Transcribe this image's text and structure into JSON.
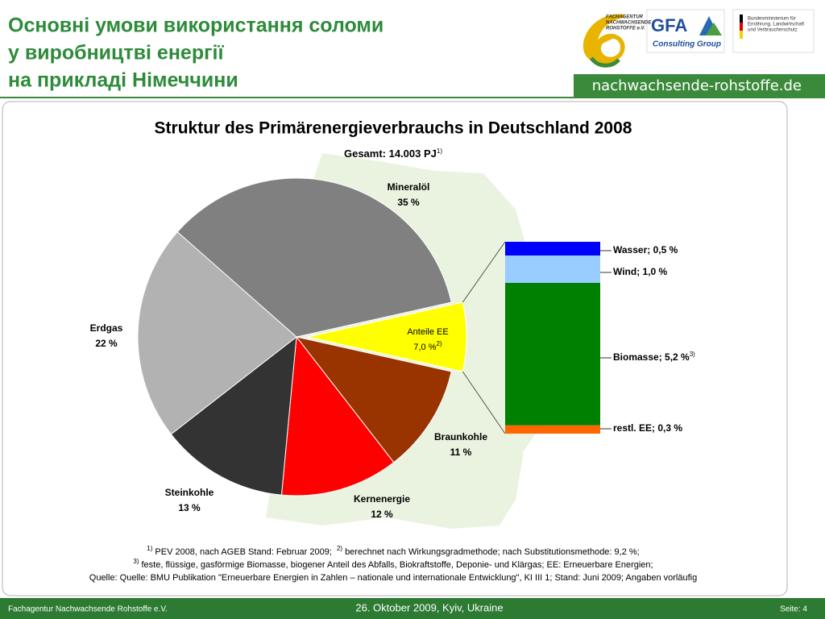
{
  "header": {
    "title": [
      "Основні умови використання соломи",
      "у виробництві енергії",
      "на прикладі Німеччини"
    ],
    "site": "nachwachsende-rohstoffe.de",
    "logos": {
      "fnr": [
        "FACHAGENTUR",
        "NACHWACHSENDE",
        "ROHSTOFFE e.V."
      ],
      "gfa": [
        "GFA",
        "Consulting Group"
      ],
      "bmelv": [
        "Bundesministerium für",
        "Ernährung, Landwirtschaft",
        "und Verbraucherschutz"
      ]
    }
  },
  "chart_data": [
    {
      "type": "pie",
      "title": "Struktur des Primärenergieverbrauchs in Deutschland 2008",
      "subtitle": "Gesamt: 14.003 PJ",
      "subtitle_note": "1)",
      "categories": [
        "Anteile EE",
        "Braunkohle",
        "Kernenergie",
        "Steinkohle",
        "Erdgas",
        "Mineralöl"
      ],
      "values": [
        7.0,
        11,
        12,
        13,
        22,
        35
      ],
      "value_labels": [
        "7,0 %",
        "11 %",
        "12 %",
        "13 %",
        "22 %",
        "35 %"
      ],
      "label_notes": [
        "2)",
        null,
        null,
        null,
        null,
        null
      ],
      "colors": [
        "#ffff00",
        "#993300",
        "#ff0000",
        "#333333",
        "#b2b2b2",
        "#808080"
      ],
      "explode": [
        true,
        false,
        false,
        false,
        false,
        false
      ]
    },
    {
      "type": "bar",
      "stacked": true,
      "series": [
        {
          "color": "#0000ff",
          "values": [
            0.5
          ],
          "value_labels": [
            "Wasser; 0,5 %"
          ]
        },
        {
          "color": "#99ccff",
          "values": [
            1.0
          ],
          "value_labels": [
            "Wind; 1,0 %"
          ]
        },
        {
          "color": "#008000",
          "values": [
            5.2
          ],
          "value_labels": [
            "Biomasse; 5,2 %"
          ],
          "note": "3)"
        },
        {
          "color": "#ff6600",
          "values": [
            0.3
          ],
          "value_labels": [
            "restl. EE; 0,3 %"
          ]
        }
      ]
    }
  ],
  "footnotes": [
    [
      {
        "mark": "1)",
        "text": "PEV 2008, nach AGEB Stand: Februar 2009;"
      },
      {
        "mark": "2)",
        "text": "berechnet nach  Wirkungsgradmethode; nach Substitutionsmethode: 9,2 %;"
      }
    ],
    [
      {
        "mark": "3)",
        "text": "feste, flüssige, gasförmige Biomasse, biogener Anteil des Abfalls, Biokraftstoffe, Deponie- und Klärgas; EE: Erneuerbare Energien;"
      }
    ],
    [
      {
        "text": "Quelle: Quelle: BMU Publikation \"Erneuerbare Energien in Zahlen – nationale und internationale Entwicklung\", KI III 1; Stand: Juni 2009; Angaben vorläufig"
      }
    ]
  ],
  "footer": {
    "left": "Fachagentur Nachwachsende Rohstoffe e.V.",
    "center": "26. Oktober 2009, Kyiv, Ukraine",
    "right": "Seite: 4"
  }
}
